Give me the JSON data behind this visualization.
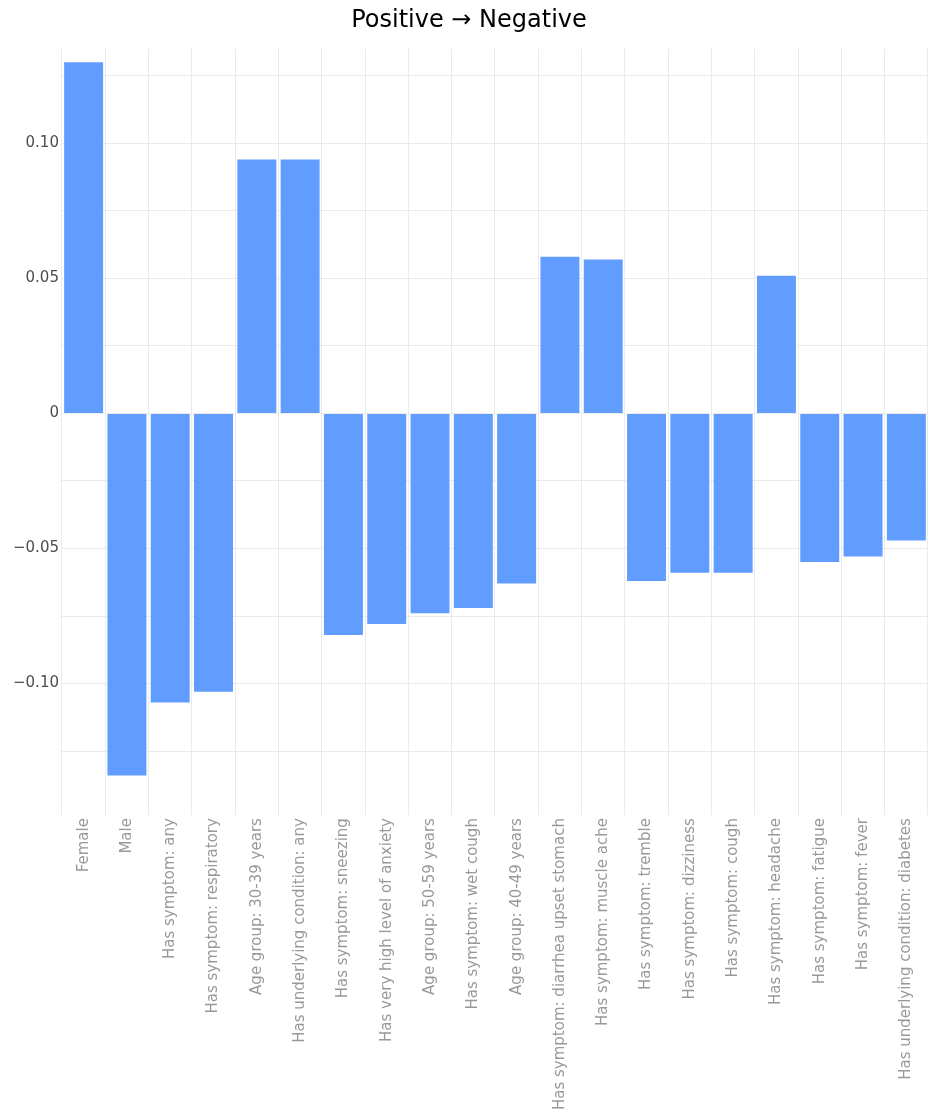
{
  "chart_data": {
    "type": "bar",
    "title": "Positive → Negative",
    "categories": [
      "Female",
      "Male",
      "Has symptom: any",
      "Has symptom: respiratory",
      "Age group: 30-39 years",
      "Has underlying condition: any",
      "Has symptom: sneezing",
      "Has very high level of anxiety",
      "Age group: 50-59 years",
      "Has symptom: wet cough",
      "Age group: 40-49 years",
      "Has symptom: diarrhea upset stomach",
      "Has symptom: muscle ache",
      "Has symptom: tremble",
      "Has symptom: dizziness",
      "Has symptom: cough",
      "Has symptom: headache",
      "Has symptom: fatigue",
      "Has symptom: fever",
      "Has underlying condition: diabetes"
    ],
    "values": [
      0.13,
      -0.134,
      -0.107,
      -0.103,
      0.094,
      0.094,
      -0.082,
      -0.078,
      -0.074,
      -0.072,
      -0.063,
      0.058,
      0.057,
      -0.062,
      -0.059,
      -0.059,
      0.051,
      -0.055,
      -0.053,
      -0.047
    ],
    "color": "#619cff",
    "ylim": [
      -0.145,
      0.135
    ],
    "yticks": [
      {
        "value": -0.125,
        "label": null
      },
      {
        "value": -0.1,
        "label": "−0.10"
      },
      {
        "value": -0.075,
        "label": null
      },
      {
        "value": -0.05,
        "label": "−0.05"
      },
      {
        "value": -0.025,
        "label": null
      },
      0,
      {
        "value": 0.025,
        "label": null
      },
      {
        "value": 0.05,
        "label": "0.05"
      },
      {
        "value": 0.075,
        "label": null
      },
      {
        "value": 0.1,
        "label": "0.10"
      },
      {
        "value": 0.125,
        "label": null
      }
    ],
    "grid": true,
    "legend": false
  }
}
